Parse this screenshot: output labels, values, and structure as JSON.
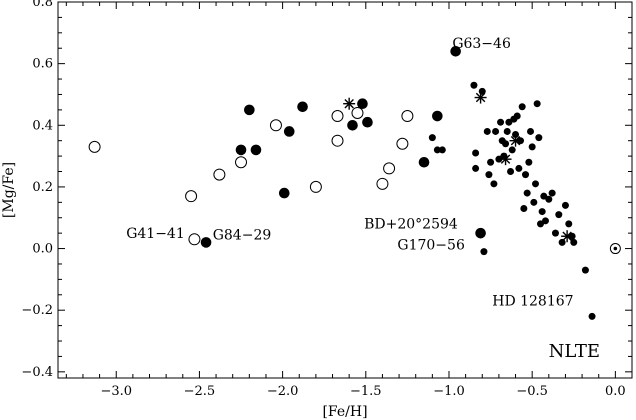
{
  "chart_data": {
    "type": "scatter",
    "xlabel": "[Fe/H]",
    "ylabel": "[Mg/Fe]",
    "xlim": [
      -3.35,
      0.1
    ],
    "ylim": [
      -0.42,
      0.8
    ],
    "x_ticks": [
      -3.0,
      -2.5,
      -2.0,
      -1.5,
      -1.0,
      -0.5,
      0.0
    ],
    "x_tick_labels": [
      "−3.0",
      "−2.5",
      "−2.0",
      "−1.5",
      "−1.0",
      "−0.5",
      "0.0"
    ],
    "y_ticks": [
      -0.4,
      -0.2,
      0.0,
      0.2,
      0.4,
      0.6,
      0.8
    ],
    "y_tick_labels": [
      "−0.4",
      "−0.2",
      "0.0",
      "0.2",
      "0.4",
      "0.6",
      "0.8"
    ],
    "panel_label": "NLTE",
    "series": [
      {
        "marker": "open-circle",
        "x": [
          -3.13,
          -2.55,
          -2.53,
          -2.38,
          -2.25,
          -2.04,
          -1.8,
          -1.67,
          -1.67,
          -1.55,
          -1.4,
          -1.36,
          -1.28,
          -1.25
        ],
        "y": [
          0.33,
          0.17,
          0.03,
          0.24,
          0.28,
          0.4,
          0.2,
          0.35,
          0.43,
          0.44,
          0.21,
          0.26,
          0.34,
          0.43
        ]
      },
      {
        "marker": "filled-circle-large",
        "x": [
          -2.46,
          -2.25,
          -2.2,
          -2.16,
          -1.99,
          -1.96,
          -1.88,
          -1.58,
          -1.52,
          -1.49,
          -1.15,
          -1.07,
          -0.96,
          -0.81
        ],
        "y": [
          0.02,
          0.32,
          0.45,
          0.32,
          0.18,
          0.38,
          0.46,
          0.4,
          0.47,
          0.41,
          0.28,
          0.43,
          0.64,
          0.05
        ]
      },
      {
        "marker": "filled-circle-small",
        "x": [
          -1.1,
          -1.07,
          -1.04,
          -0.85,
          -0.84,
          -0.84,
          -0.8,
          -0.77,
          -0.76,
          -0.75,
          -0.73,
          -0.72,
          -0.7,
          -0.69,
          -0.68,
          -0.67,
          -0.66,
          -0.65,
          -0.64,
          -0.63,
          -0.62,
          -0.61,
          -0.6,
          -0.59,
          -0.58,
          -0.57,
          -0.56,
          -0.55,
          -0.54,
          -0.53,
          -0.52,
          -0.51,
          -0.5,
          -0.49,
          -0.48,
          -0.47,
          -0.46,
          -0.45,
          -0.44,
          -0.43,
          -0.42,
          -0.4,
          -0.38,
          -0.36,
          -0.34,
          -0.32,
          -0.3,
          -0.28,
          -0.26,
          -0.25,
          -0.18,
          -0.14,
          -0.79
        ],
        "y": [
          0.36,
          0.32,
          0.32,
          0.53,
          0.31,
          0.26,
          0.51,
          0.38,
          0.24,
          0.28,
          0.21,
          0.38,
          0.29,
          0.41,
          0.35,
          0.3,
          0.34,
          0.38,
          0.41,
          0.25,
          0.32,
          0.42,
          0.37,
          0.43,
          0.26,
          0.35,
          0.46,
          0.13,
          0.24,
          0.18,
          0.28,
          0.38,
          0.33,
          0.15,
          0.21,
          0.47,
          0.36,
          0.08,
          0.12,
          0.17,
          0.09,
          0.16,
          0.18,
          0.05,
          0.11,
          0.02,
          0.14,
          0.08,
          0.04,
          0.02,
          -0.07,
          -0.22,
          -0.01
        ]
      },
      {
        "marker": "star",
        "x": [
          -1.6,
          -0.81,
          -0.66,
          -0.6,
          -0.29
        ],
        "y": [
          0.47,
          0.49,
          0.29,
          0.35,
          0.04
        ]
      },
      {
        "marker": "sun",
        "x": [
          0.0
        ],
        "y": [
          0.0
        ]
      }
    ],
    "annotations": [
      {
        "text": "G63−46",
        "x": -0.98,
        "y": 0.65
      },
      {
        "text": "G41−41",
        "x": -2.94,
        "y": 0.035
      },
      {
        "text": "G84−29",
        "x": -2.42,
        "y": 0.03
      },
      {
        "text": "BD+20°2594",
        "x": -1.51,
        "y": 0.065
      },
      {
        "text": "G170−56",
        "x": -1.31,
        "y": -0.003
      },
      {
        "text": "HD 128167",
        "x": -0.74,
        "y": -0.185
      }
    ]
  }
}
